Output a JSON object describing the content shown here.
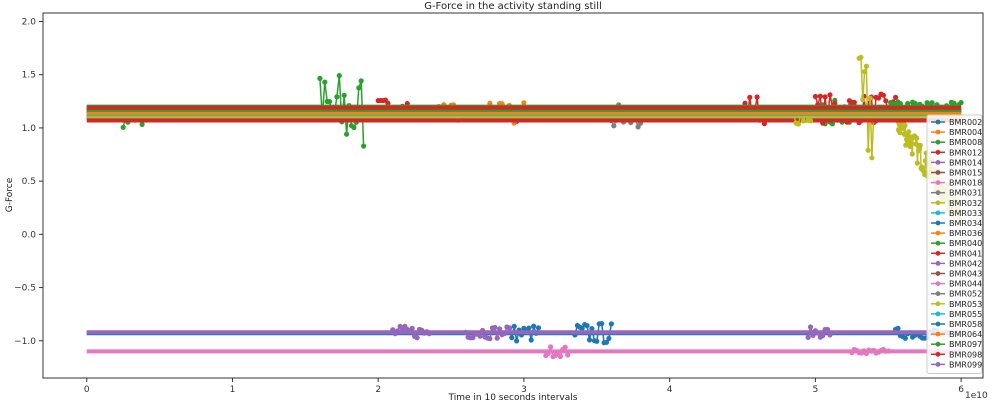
{
  "chart_data": {
    "type": "line",
    "title": "G-Force in the activity standing still",
    "xlabel": "Time in 10 seconds intervals",
    "ylabel": "G-Force",
    "x_offset_label": "1e10",
    "xlim": [
      -0.3,
      6.15
    ],
    "ylim": [
      -1.35,
      2.08
    ],
    "x_ticks": [
      0,
      1,
      2,
      3,
      4,
      5,
      6
    ],
    "x_tick_labels": [
      "0",
      "1",
      "2",
      "3",
      "4",
      "5",
      "6"
    ],
    "y_ticks": [
      -1.0,
      -0.5,
      0.0,
      0.5,
      1.0,
      1.5,
      2.0
    ],
    "y_tick_labels": [
      "−1.0",
      "−0.5",
      "0.0",
      "0.5",
      "1.0",
      "1.5",
      "2.0"
    ],
    "grid": false,
    "legend_position": "right",
    "series": [
      {
        "name": "BMR002",
        "color": "#1f77b4",
        "base": 1.12,
        "bursts": [
          [
            2.95,
            3.1,
            0.06
          ],
          [
            5.3,
            5.5,
            0.06
          ]
        ]
      },
      {
        "name": "BMR004",
        "color": "#ff7f0e",
        "base": 1.13,
        "bursts": [
          [
            2.75,
            3.0,
            0.12
          ],
          [
            5.05,
            5.3,
            0.08
          ]
        ]
      },
      {
        "name": "BMR008",
        "color": "#2ca02c",
        "base": 1.14,
        "bursts": [
          [
            0.25,
            0.38,
            0.2
          ],
          [
            1.6,
            1.9,
            0.4
          ],
          [
            5.05,
            5.25,
            0.12
          ]
        ]
      },
      {
        "name": "BMR012",
        "color": "#d62728",
        "base": 1.18,
        "bursts": [
          [
            2.0,
            2.2,
            0.1
          ],
          [
            4.5,
            4.65,
            0.14
          ],
          [
            5.0,
            5.55,
            0.14
          ]
        ]
      },
      {
        "name": "BMR014",
        "color": "#9467bd",
        "base": 1.16,
        "bursts": []
      },
      {
        "name": "BMR015",
        "color": "#8c564b",
        "base": 1.15,
        "bursts": []
      },
      {
        "name": "BMR018",
        "color": "#e377c2",
        "base": 1.11,
        "bursts": []
      },
      {
        "name": "BMR031",
        "color": "#7f7f7f",
        "base": 1.1,
        "bursts": [
          [
            3.6,
            3.8,
            0.15
          ]
        ]
      },
      {
        "name": "BMR032",
        "color": "#bcbd22",
        "base": 1.12,
        "bursts": [
          [
            5.3,
            5.4,
            0.55
          ]
        ]
      },
      {
        "name": "BMR033",
        "color": "#17becf",
        "base": 1.13,
        "bursts": []
      },
      {
        "name": "BMR034",
        "color": "#1f77b4",
        "base": 1.11,
        "bursts": []
      },
      {
        "name": "BMR036",
        "color": "#ff7f0e",
        "base": 1.14,
        "bursts": [
          [
            2.3,
            2.55,
            0.08
          ]
        ]
      },
      {
        "name": "BMR040",
        "color": "#2ca02c",
        "base": 1.2,
        "bursts": [
          [
            5.5,
            6.0,
            0.05
          ]
        ]
      },
      {
        "name": "BMR041",
        "color": "#d62728",
        "base": 1.07,
        "bursts": []
      },
      {
        "name": "BMR042",
        "color": "#9467bd",
        "base": 1.15,
        "bursts": []
      },
      {
        "name": "BMR043",
        "color": "#8c564b",
        "base": 1.16,
        "bursts": []
      },
      {
        "name": "BMR044",
        "color": "#e377c2",
        "base": -1.1,
        "bursts": [
          [
            3.15,
            3.3,
            0.05
          ],
          [
            5.25,
            5.5,
            0.02
          ]
        ]
      },
      {
        "name": "BMR052",
        "color": "#7f7f7f",
        "base": 1.12,
        "bursts": []
      },
      {
        "name": "BMR053",
        "color": "#bcbd22",
        "base": 1.11,
        "bursts": [
          [
            4.8,
            5.0,
            0.08
          ]
        ]
      },
      {
        "name": "BMR055",
        "color": "#17becf",
        "base": 1.13,
        "bursts": []
      },
      {
        "name": "BMR058",
        "color": "#1f77b4",
        "base": -0.93,
        "bursts": [
          [
            2.9,
            3.1,
            0.08
          ],
          [
            3.35,
            3.6,
            0.1
          ],
          [
            5.55,
            5.85,
            0.05
          ]
        ]
      },
      {
        "name": "BMR064",
        "color": "#ff7f0e",
        "base": 1.14,
        "bursts": []
      },
      {
        "name": "BMR097",
        "color": "#2ca02c",
        "base": 1.17,
        "bursts": []
      },
      {
        "name": "BMR098",
        "color": "#d62728",
        "base": 1.19,
        "bursts": []
      },
      {
        "name": "BMR099",
        "color": "#9467bd",
        "base": -0.92,
        "bursts": [
          [
            2.1,
            2.35,
            0.06
          ],
          [
            2.6,
            2.9,
            0.06
          ],
          [
            4.95,
            5.1,
            0.05
          ]
        ]
      }
    ]
  }
}
